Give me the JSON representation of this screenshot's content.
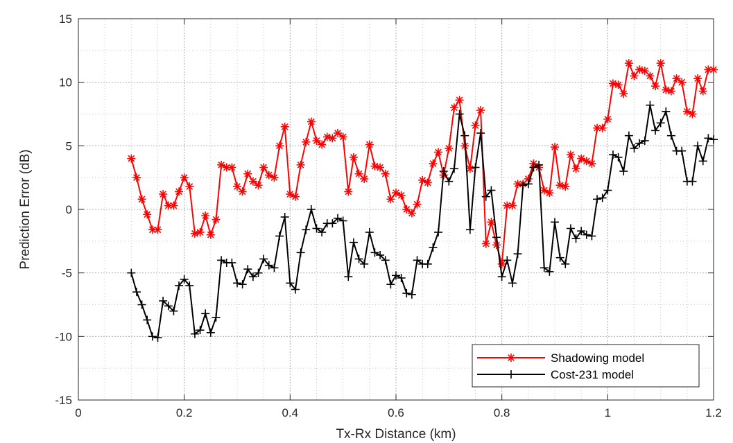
{
  "chart_data": {
    "type": "line",
    "xlabel": "Tx-Rx Distance (km)",
    "ylabel": "Prediction Error (dB)",
    "xlim": [
      0,
      1.2
    ],
    "ylim": [
      -15,
      15
    ],
    "xticks": [
      0,
      0.2,
      0.4,
      0.6,
      0.8,
      1,
      1.2
    ],
    "xtick_labels": [
      "0",
      "0.2",
      "0.4",
      "0.6",
      "0.8",
      "1",
      "1.2"
    ],
    "yticks": [
      -15,
      -10,
      -5,
      0,
      5,
      10,
      15
    ],
    "ytick_labels": [
      "-15",
      "-10",
      "-5",
      "0",
      "5",
      "10",
      "15"
    ],
    "grid": true,
    "legend_position": "bottom-right",
    "x": [
      0.1,
      0.11,
      0.12,
      0.13,
      0.14,
      0.15,
      0.16,
      0.17,
      0.18,
      0.19,
      0.2,
      0.21,
      0.22,
      0.23,
      0.24,
      0.25,
      0.26,
      0.27,
      0.28,
      0.29,
      0.3,
      0.31,
      0.32,
      0.33,
      0.34,
      0.35,
      0.36,
      0.37,
      0.38,
      0.39,
      0.4,
      0.41,
      0.42,
      0.43,
      0.44,
      0.45,
      0.46,
      0.47,
      0.48,
      0.49,
      0.5,
      0.51,
      0.52,
      0.53,
      0.54,
      0.55,
      0.56,
      0.57,
      0.58,
      0.59,
      0.6,
      0.61,
      0.62,
      0.63,
      0.64,
      0.65,
      0.66,
      0.67,
      0.68,
      0.69,
      0.7,
      0.71,
      0.72,
      0.73,
      0.74,
      0.75,
      0.76,
      0.77,
      0.78,
      0.79,
      0.8,
      0.81,
      0.82,
      0.83,
      0.84,
      0.85,
      0.86,
      0.87,
      0.88,
      0.89,
      0.9,
      0.91,
      0.92,
      0.93,
      0.94,
      0.95,
      0.96,
      0.97,
      0.98,
      0.99,
      1.0,
      1.01,
      1.02,
      1.03,
      1.04,
      1.05,
      1.06,
      1.07,
      1.08,
      1.09,
      1.1,
      1.11,
      1.12,
      1.13,
      1.14,
      1.15,
      1.16,
      1.17,
      1.18,
      1.19,
      1.2
    ],
    "series": [
      {
        "name": "Shadowing model",
        "color": "#ff0000",
        "marker": "asterisk",
        "values": [
          4.0,
          2.5,
          0.8,
          -0.4,
          -1.6,
          -1.6,
          1.2,
          0.3,
          0.3,
          1.4,
          2.5,
          1.8,
          -1.9,
          -1.8,
          -0.5,
          -2.0,
          -0.8,
          3.5,
          3.3,
          3.3,
          1.8,
          1.4,
          2.8,
          2.2,
          1.9,
          3.3,
          2.7,
          2.5,
          5.0,
          6.5,
          1.2,
          1.0,
          3.5,
          5.3,
          6.9,
          5.4,
          5.1,
          5.7,
          5.6,
          6.0,
          5.7,
          1.4,
          4.1,
          2.8,
          2.4,
          5.1,
          3.4,
          3.3,
          2.8,
          0.8,
          1.3,
          1.1,
          0.0,
          -0.3,
          0.4,
          2.3,
          2.1,
          3.6,
          4.5,
          2.7,
          4.8,
          8.0,
          8.6,
          5.0,
          3.2,
          6.6,
          7.8,
          -2.7,
          -1.0,
          -2.8,
          -4.3,
          0.3,
          0.3,
          2.0,
          2.0,
          2.4,
          3.6,
          3.3,
          1.5,
          1.3,
          4.9,
          1.9,
          1.8,
          4.3,
          3.2,
          4.0,
          3.8,
          3.6,
          6.4,
          6.4,
          7.1,
          9.9,
          9.8,
          9.1,
          11.5,
          10.5,
          11.0,
          10.9,
          10.5,
          9.7,
          11.5,
          9.4,
          9.3,
          10.3,
          10.0,
          7.7,
          7.5,
          10.3,
          9.3,
          11.0,
          11.0
        ]
      },
      {
        "name": "Cost-231 model",
        "color": "#000000",
        "marker": "plus",
        "values": [
          -5.0,
          -6.5,
          -7.5,
          -8.7,
          -10.0,
          -10.1,
          -7.2,
          -7.6,
          -8.0,
          -6.0,
          -5.5,
          -6.0,
          -9.8,
          -9.5,
          -8.2,
          -9.7,
          -8.5,
          -4.0,
          -4.2,
          -4.2,
          -5.8,
          -5.9,
          -4.7,
          -5.3,
          -5.0,
          -3.9,
          -4.4,
          -4.6,
          -2.1,
          -0.6,
          -5.8,
          -6.3,
          -3.4,
          -1.6,
          0.0,
          -1.5,
          -1.8,
          -1.1,
          -1.1,
          -0.7,
          -0.9,
          -5.3,
          -2.6,
          -3.9,
          -4.3,
          -1.8,
          -3.4,
          -3.6,
          -4.0,
          -5.9,
          -5.2,
          -5.4,
          -6.6,
          -6.7,
          -4.0,
          -4.3,
          -4.3,
          -3.0,
          -1.8,
          3.0,
          2.2,
          3.2,
          7.5,
          5.8,
          -1.6,
          3.3,
          6.0,
          1.0,
          1.5,
          -2.2,
          -5.3,
          -4.0,
          -5.8,
          -3.5,
          1.9,
          2.0,
          3.3,
          3.5,
          -4.6,
          -4.9,
          -1.0,
          -3.8,
          -4.3,
          -1.5,
          -2.3,
          -1.7,
          -2.0,
          -2.1,
          0.8,
          0.9,
          1.5,
          4.3,
          4.1,
          3.0,
          5.8,
          4.8,
          5.2,
          5.4,
          8.2,
          6.2,
          6.8,
          7.7,
          5.8,
          4.6,
          4.6,
          2.2,
          2.2,
          5.0,
          3.8,
          5.6,
          5.5
        ]
      }
    ]
  }
}
